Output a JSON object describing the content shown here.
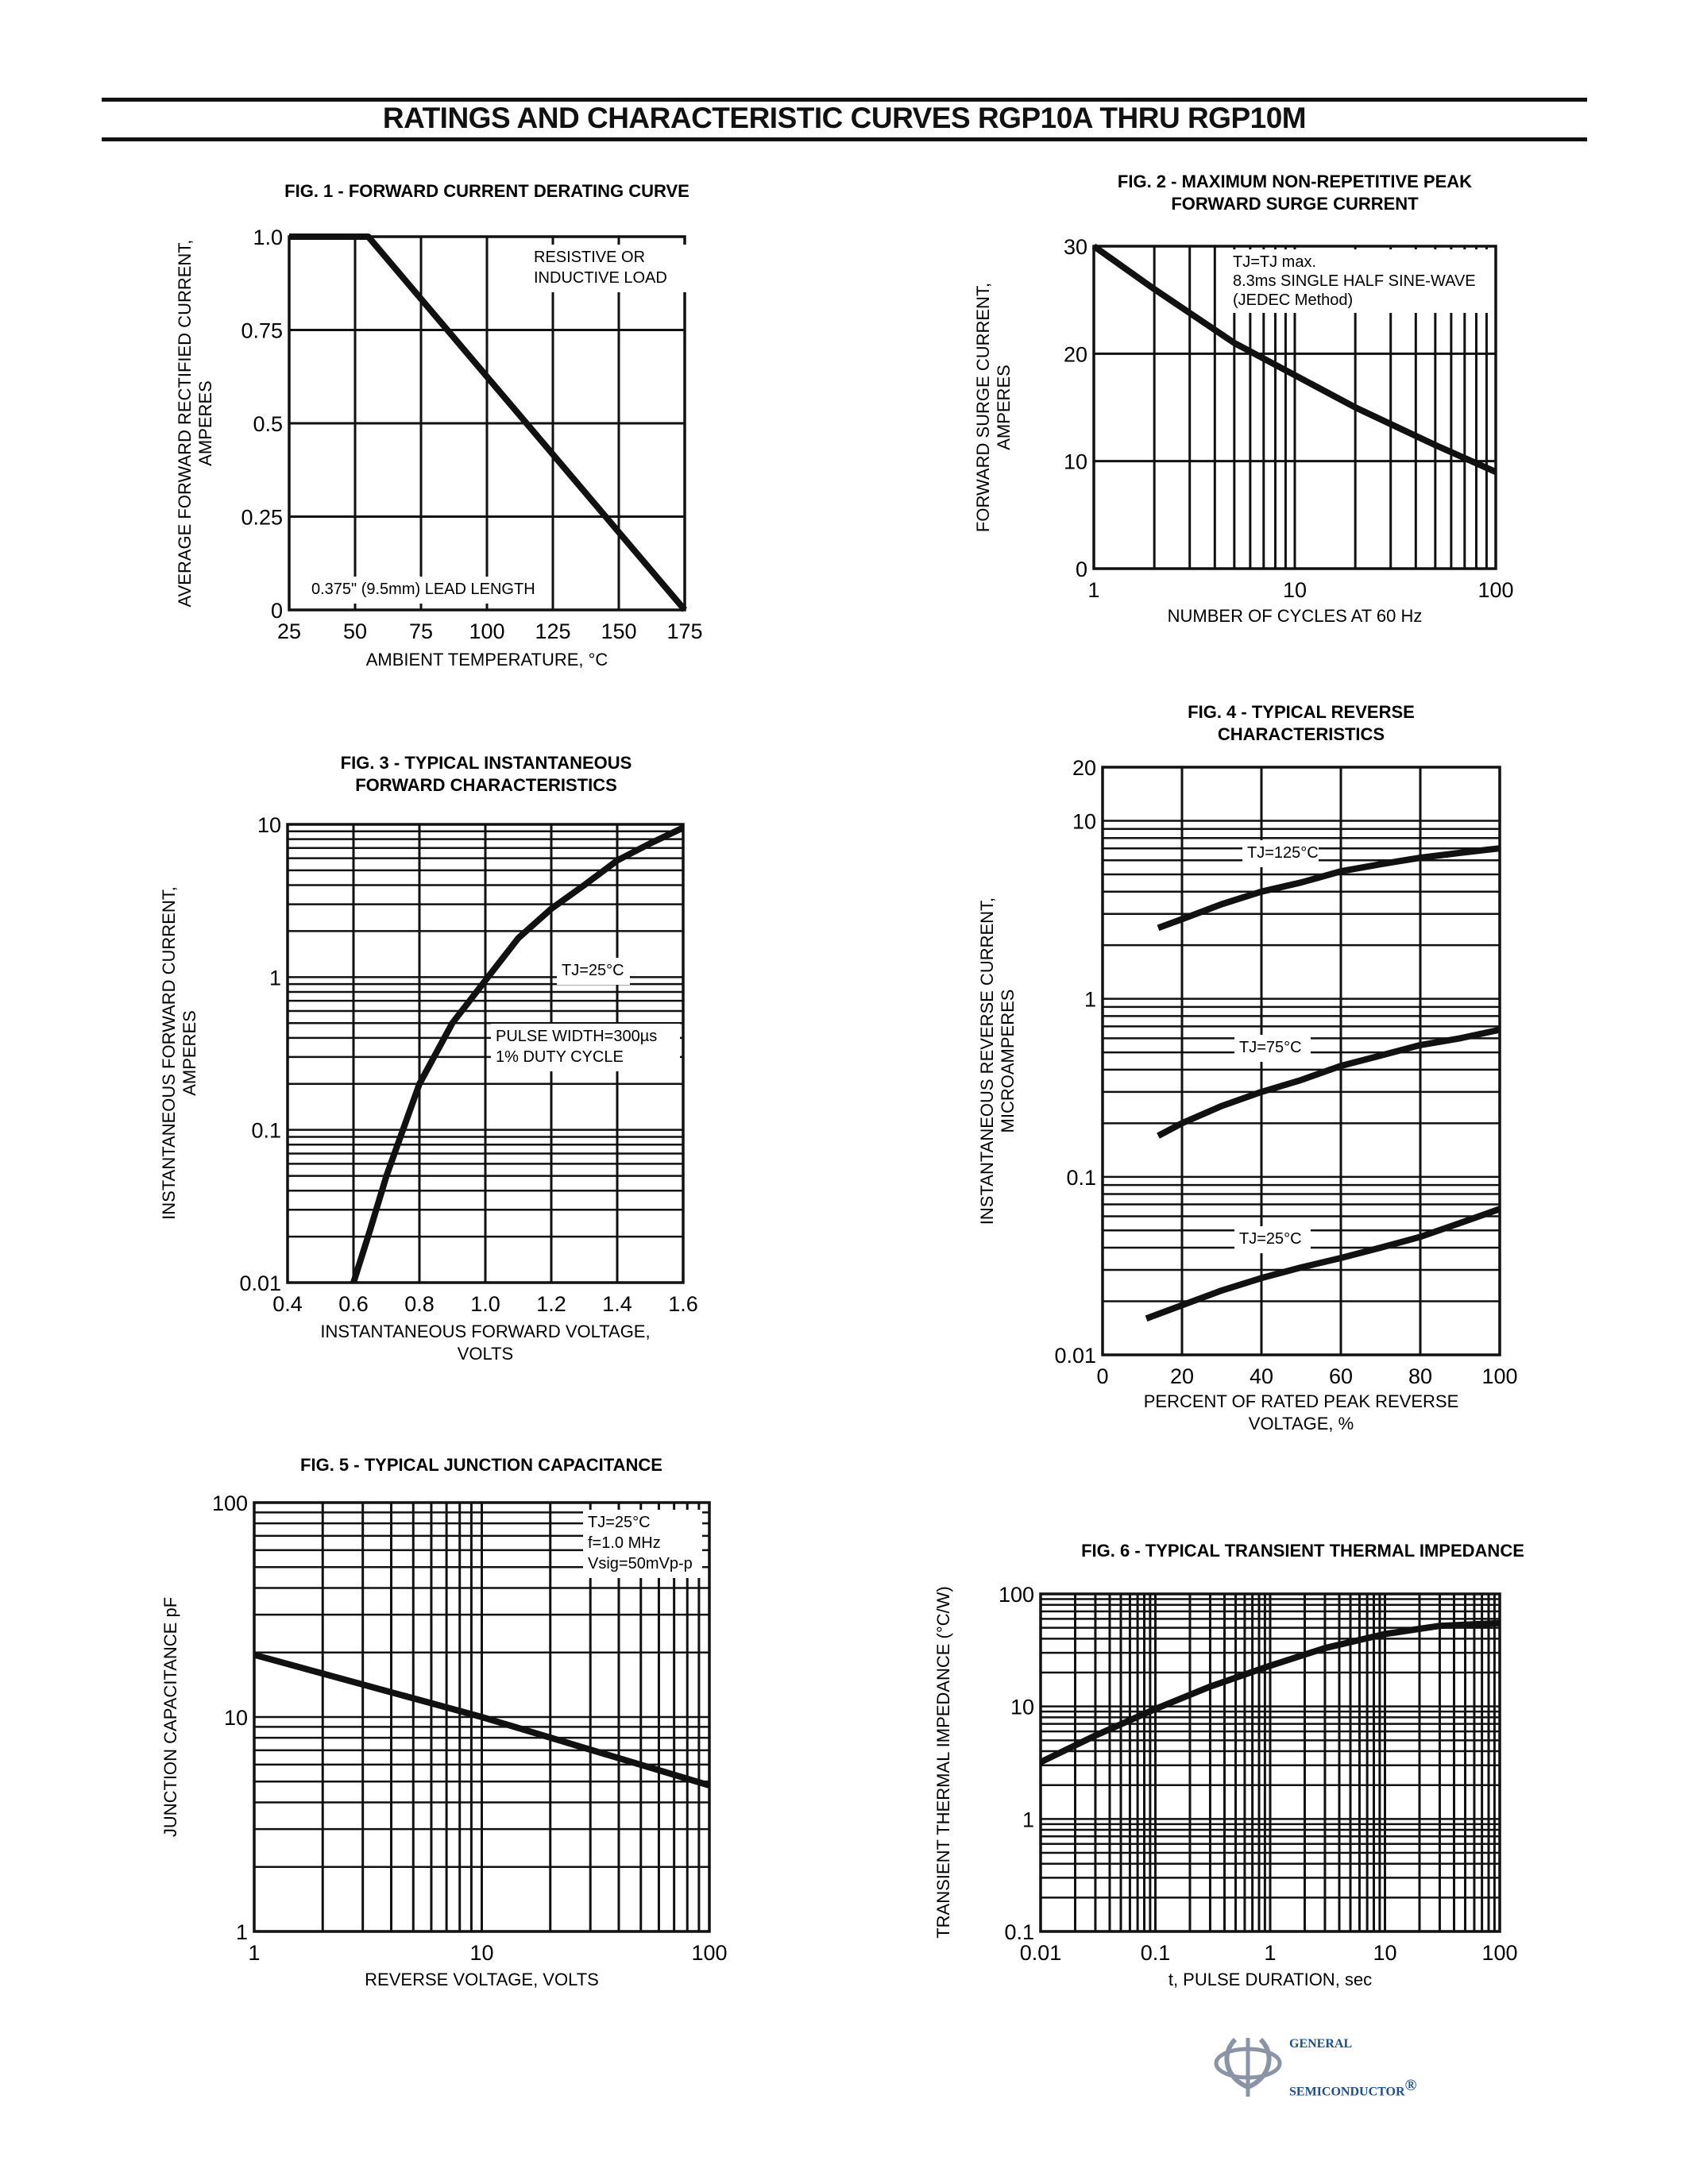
{
  "page": {
    "title": "RATINGS AND CHARACTERISTIC CURVES RGP10A THRU RGP10M"
  },
  "logo": {
    "line1": "GENERAL",
    "line2": "SEMICONDUCTOR",
    "mark": "®",
    "color": "#1e4e8c"
  },
  "chart_data": [
    {
      "id": "fig1",
      "type": "line",
      "title": "FIG. 1 - FORWARD CURRENT DERATING CURVE",
      "xlabel": "AMBIENT TEMPERATURE, °C",
      "ylabel": [
        "AVERAGE FORWARD RECTIFIED CURRENT,",
        "AMPERES"
      ],
      "xscale": "linear",
      "yscale": "linear",
      "xlim": [
        25,
        175
      ],
      "ylim": [
        0,
        1.0
      ],
      "xticks": [
        25,
        50,
        75,
        100,
        125,
        150,
        175
      ],
      "xtick_labels": [
        "25",
        "50",
        "75",
        "100",
        "125",
        "150",
        "175"
      ],
      "yticks": [
        0,
        0.25,
        0.5,
        0.75,
        1.0
      ],
      "ytick_labels": [
        "0",
        "0.25",
        "0.5",
        "0.75",
        "1.0"
      ],
      "grid": true,
      "annotations": [
        "RESISTIVE OR",
        "INDUCTIVE LOAD",
        "0.375\" (9.5mm) LEAD LENGTH"
      ],
      "series": [
        {
          "x": [
            25,
            55,
            175
          ],
          "y": [
            1.0,
            1.0,
            0.0
          ]
        }
      ]
    },
    {
      "id": "fig2",
      "type": "line",
      "title": [
        "FIG. 2 - MAXIMUM NON-REPETITIVE PEAK",
        "FORWARD SURGE CURRENT"
      ],
      "xlabel": "NUMBER OF CYCLES AT 60 Hz",
      "ylabel": [
        "FORWARD SURGE CURRENT,",
        "AMPERES"
      ],
      "xscale": "log",
      "yscale": "linear",
      "xlim": [
        1,
        100
      ],
      "ylim": [
        0,
        30
      ],
      "xticks": [
        1,
        10,
        100
      ],
      "xtick_labels": [
        "1",
        "10",
        "100"
      ],
      "yticks": [
        0,
        10,
        20,
        30
      ],
      "ytick_labels": [
        "0",
        "10",
        "20",
        "30"
      ],
      "grid": true,
      "annotations": [
        "TJ=TJ max.",
        "8.3ms SINGLE HALF SINE-WAVE",
        "(JEDEC Method)"
      ],
      "series": [
        {
          "x": [
            1,
            2,
            5,
            10,
            20,
            50,
            100
          ],
          "y": [
            30,
            26,
            21,
            18,
            15,
            11.5,
            9
          ]
        }
      ]
    },
    {
      "id": "fig3",
      "type": "line",
      "title": [
        "FIG. 3 - TYPICAL INSTANTANEOUS",
        "FORWARD CHARACTERISTICS"
      ],
      "xlabel": [
        "INSTANTANEOUS FORWARD VOLTAGE,",
        "VOLTS"
      ],
      "ylabel": [
        "INSTANTANEOUS FORWARD CURRENT,",
        "AMPERES"
      ],
      "xscale": "linear",
      "yscale": "log",
      "xlim": [
        0.4,
        1.6
      ],
      "ylim": [
        0.01,
        10
      ],
      "xticks": [
        0.4,
        0.6,
        0.8,
        1.0,
        1.2,
        1.4,
        1.6
      ],
      "xtick_labels": [
        "0.4",
        "0.6",
        "0.8",
        "1.0",
        "1.2",
        "1.4",
        "1.6"
      ],
      "yticks": [
        0.01,
        0.1,
        1,
        10
      ],
      "ytick_labels": [
        "0.01",
        "0.1",
        "1",
        "10"
      ],
      "grid": true,
      "annotations": [
        "TJ=25°C",
        "PULSE WIDTH=300µs",
        "1% DUTY CYCLE"
      ],
      "series": [
        {
          "x": [
            0.6,
            0.65,
            0.7,
            0.8,
            0.9,
            1.0,
            1.1,
            1.2,
            1.3,
            1.4,
            1.5,
            1.6
          ],
          "y": [
            0.01,
            0.022,
            0.05,
            0.2,
            0.5,
            0.95,
            1.8,
            2.8,
            4.0,
            5.8,
            7.5,
            9.5
          ]
        }
      ]
    },
    {
      "id": "fig4",
      "type": "line",
      "title": [
        "FIG. 4 - TYPICAL REVERSE",
        "CHARACTERISTICS"
      ],
      "xlabel": [
        "PERCENT OF RATED PEAK REVERSE",
        "VOLTAGE, %"
      ],
      "ylabel": [
        "INSTANTANEOUS REVERSE CURRENT,",
        "MICROAMPERES"
      ],
      "xscale": "linear",
      "yscale": "log",
      "xlim": [
        0,
        100
      ],
      "ylim": [
        0.01,
        20
      ],
      "xticks": [
        0,
        20,
        40,
        60,
        80,
        100
      ],
      "xtick_labels": [
        "0",
        "20",
        "40",
        "60",
        "80",
        "100"
      ],
      "yticks": [
        0.01,
        0.1,
        1,
        10,
        20
      ],
      "ytick_labels": [
        "0.01",
        "0.1",
        "1",
        "10",
        "20"
      ],
      "grid": true,
      "series": [
        {
          "name": "TJ=125°C",
          "x": [
            14,
            20,
            30,
            40,
            50,
            60,
            70,
            80,
            90,
            100
          ],
          "y": [
            2.5,
            2.8,
            3.4,
            4.0,
            4.5,
            5.2,
            5.7,
            6.2,
            6.6,
            7.0
          ]
        },
        {
          "name": "TJ=75°C",
          "x": [
            14,
            20,
            30,
            40,
            50,
            60,
            70,
            80,
            90,
            100
          ],
          "y": [
            0.17,
            0.2,
            0.25,
            0.3,
            0.35,
            0.42,
            0.48,
            0.55,
            0.6,
            0.67
          ]
        },
        {
          "name": "TJ=25°C",
          "x": [
            11,
            20,
            30,
            40,
            50,
            60,
            70,
            80,
            90,
            100
          ],
          "y": [
            0.016,
            0.019,
            0.023,
            0.027,
            0.031,
            0.035,
            0.04,
            0.046,
            0.055,
            0.066
          ]
        }
      ]
    },
    {
      "id": "fig5",
      "type": "line",
      "title": "FIG. 5 - TYPICAL JUNCTION CAPACITANCE",
      "xlabel": "REVERSE VOLTAGE, VOLTS",
      "ylabel": "JUNCTION CAPACITANCE pF",
      "xscale": "log",
      "yscale": "log",
      "xlim": [
        1,
        100
      ],
      "ylim": [
        1,
        100
      ],
      "xticks": [
        1,
        10,
        100
      ],
      "xtick_labels": [
        "1",
        "10",
        "100"
      ],
      "yticks": [
        1,
        10,
        100
      ],
      "ytick_labels": [
        "1",
        "10",
        "100"
      ],
      "grid": true,
      "annotations": [
        "TJ=25°C",
        "f=1.0 MHz",
        "Vsig=50mVp-p"
      ],
      "series": [
        {
          "x": [
            1,
            10,
            100
          ],
          "y": [
            19.5,
            10,
            4.8
          ]
        }
      ]
    },
    {
      "id": "fig6",
      "type": "line",
      "title": "FIG. 6 - TYPICAL TRANSIENT THERMAL IMPEDANCE",
      "xlabel": "t, PULSE DURATION, sec",
      "ylabel": "TRANSIENT THERMAL IMPEDANCE (°C/W)",
      "xscale": "log",
      "yscale": "log",
      "xlim": [
        0.01,
        100
      ],
      "ylim": [
        0.1,
        100
      ],
      "xticks": [
        0.01,
        0.1,
        1,
        10,
        100
      ],
      "xtick_labels": [
        "0.01",
        "0.1",
        "1",
        "10",
        "100"
      ],
      "yticks": [
        0.1,
        1,
        10,
        100
      ],
      "ytick_labels": [
        "0.1",
        "1",
        "10",
        "100"
      ],
      "grid": true,
      "series": [
        {
          "x": [
            0.01,
            0.03,
            0.1,
            0.3,
            1,
            3,
            10,
            30,
            100
          ],
          "y": [
            3.2,
            5.5,
            9.5,
            15,
            23,
            33,
            44,
            52,
            55
          ]
        }
      ]
    }
  ]
}
